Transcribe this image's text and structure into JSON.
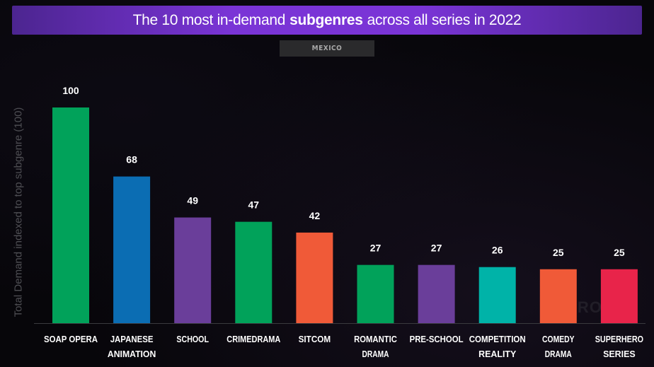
{
  "title": {
    "prefix": "The 10 most in-demand",
    "emphasis": "subgenres",
    "suffix": "across all series in 2022"
  },
  "filter_tab": {
    "label": "MEXICO"
  },
  "watermark": {
    "text": "PAROT"
  },
  "chart_data": {
    "type": "bar",
    "title": "The 10 most in-demand subgenres across all series in 2022",
    "ylabel": "Total Demand indexed to top subgenre (100)",
    "xlabel": "",
    "ylim": [
      0,
      100
    ],
    "grid": false,
    "legend": "none",
    "categories": [
      [
        "SOAP OPERA"
      ],
      [
        "JAPANESE",
        "ANIMATION"
      ],
      [
        "SCHOOL"
      ],
      [
        "CRIMEDRAMA"
      ],
      [
        "SITCOM"
      ],
      [
        "ROMANTIC",
        "DRAMA"
      ],
      [
        "PRE-SCHOOL"
      ],
      [
        "COMPETITION",
        "REALITY"
      ],
      [
        "COMEDY",
        "DRAMA"
      ],
      [
        "SUPERHERO",
        "SERIES"
      ]
    ],
    "values": [
      100,
      68,
      49,
      47,
      42,
      27,
      27,
      26,
      25,
      25
    ],
    "colors": [
      "#01a25a",
      "#0b6db3",
      "#6a3e9a",
      "#01a25a",
      "#f05a38",
      "#01a25a",
      "#6a3e9a",
      "#00b3a8",
      "#f05a38",
      "#e8244a"
    ]
  }
}
